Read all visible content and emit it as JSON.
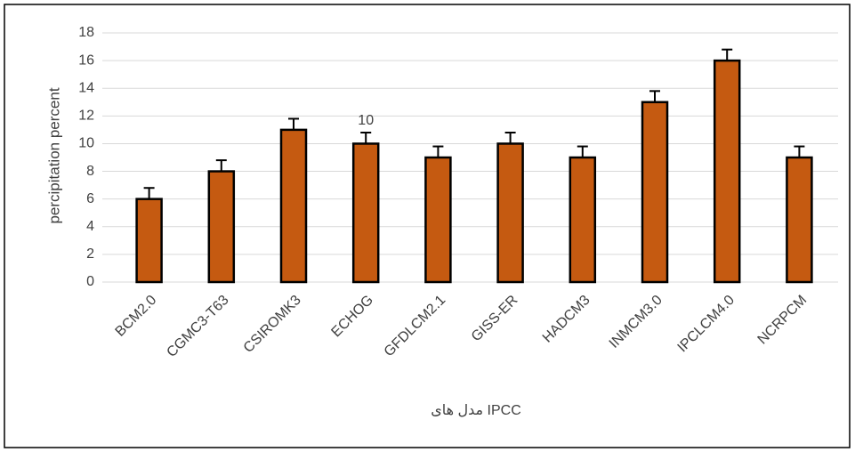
{
  "chart_data": {
    "type": "bar",
    "y_label": "percipitation percent",
    "x_label": "مدل های IPCC",
    "categories": [
      "BCM2.0",
      "CGMC3-T63",
      "CSIROMK3",
      "ECHOG",
      "GFDLCM2.1",
      "GISS-ER",
      "HADCM3",
      "INMCM3.0",
      "IPCLCM4.0",
      "NCRPCM"
    ],
    "values": [
      6,
      8,
      11,
      10,
      9,
      10,
      9,
      13,
      16,
      9
    ],
    "errors": [
      0.8,
      0.8,
      0.8,
      0.8,
      0.8,
      0.8,
      0.8,
      0.8,
      0.8,
      0.8
    ],
    "value_label_indices": [
      3
    ],
    "color": "#c55a11",
    "ylim": [
      0,
      18
    ],
    "yticks": [
      0,
      2,
      4,
      6,
      8,
      10,
      12,
      14,
      16,
      18
    ],
    "grid": true
  }
}
